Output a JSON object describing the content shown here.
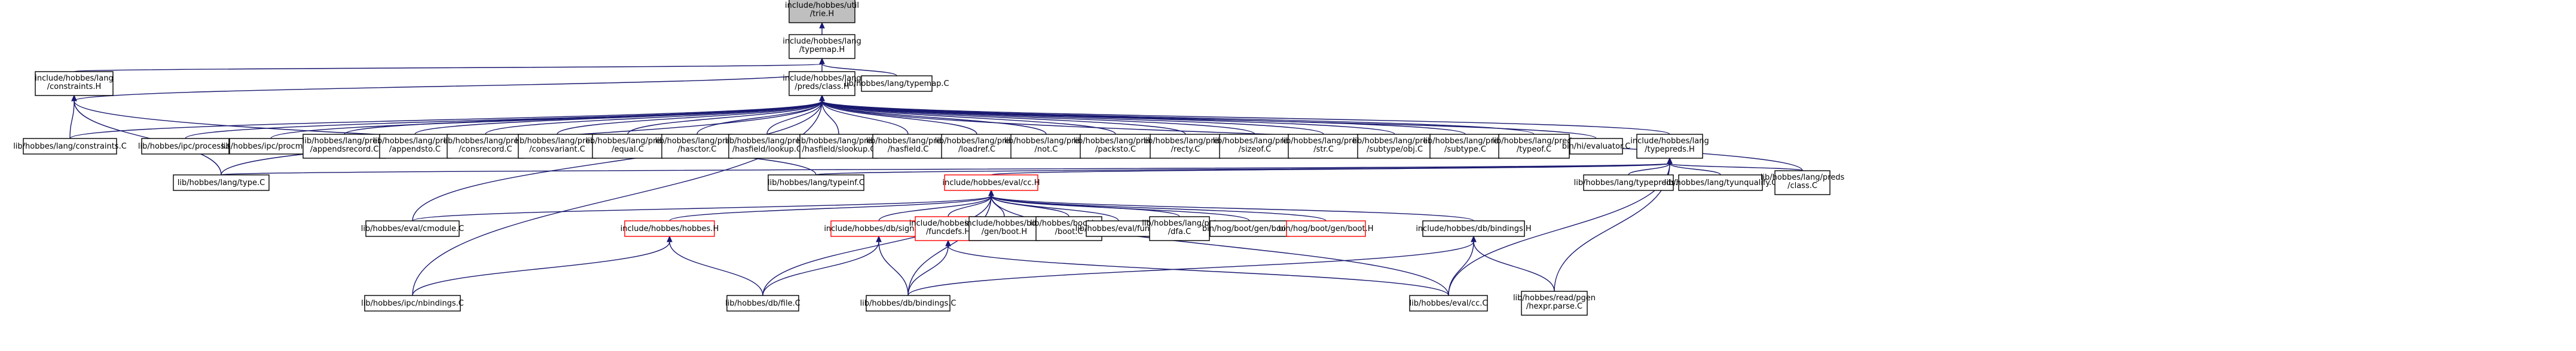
{
  "nodes": [
    {
      "id": "n0",
      "label": [
        "include/hobbes/util",
        "/trie.H"
      ],
      "kind": "root"
    },
    {
      "id": "n1",
      "label": [
        "include/hobbes/lang",
        "/typemap.H"
      ]
    },
    {
      "id": "n2",
      "label": [
        "include/hobbes/lang",
        "/constraints.H"
      ]
    },
    {
      "id": "n3",
      "label": [
        "include/hobbes/lang",
        "/preds/class.H"
      ]
    },
    {
      "id": "n4",
      "label": [
        "lib/hobbes/lang/typemap.C"
      ]
    },
    {
      "id": "n5",
      "label": [
        "lib/hobbes/lang/constraints.C"
      ]
    },
    {
      "id": "n6",
      "label": [
        "lib/hobbes/ipc/process.C"
      ]
    },
    {
      "id": "n7",
      "label": [
        "lib/hobbes/ipc/procman.C"
      ]
    },
    {
      "id": "n8",
      "label": [
        "lib/hobbes/lang/preds",
        "/appendsrecord.C"
      ]
    },
    {
      "id": "n9",
      "label": [
        "lib/hobbes/lang/preds",
        "/appendsto.C"
      ]
    },
    {
      "id": "n10",
      "label": [
        "lib/hobbes/lang/preds",
        "/consrecord.C"
      ]
    },
    {
      "id": "n11",
      "label": [
        "lib/hobbes/lang/preds",
        "/consvariant.C"
      ]
    },
    {
      "id": "n12",
      "label": [
        "lib/hobbes/lang/preds",
        "/equal.C"
      ]
    },
    {
      "id": "n13",
      "label": [
        "lib/hobbes/lang/preds",
        "/hasctor.C"
      ]
    },
    {
      "id": "n14",
      "label": [
        "lib/hobbes/lang/preds",
        "/hasfield/lookup.C"
      ]
    },
    {
      "id": "n15",
      "label": [
        "lib/hobbes/lang/preds",
        "/hasfield/slookup.C"
      ]
    },
    {
      "id": "n16",
      "label": [
        "lib/hobbes/lang/preds",
        "/hasfield.C"
      ]
    },
    {
      "id": "n17",
      "label": [
        "lib/hobbes/lang/preds",
        "/loadref.C"
      ]
    },
    {
      "id": "n18",
      "label": [
        "lib/hobbes/lang/preds",
        "/not.C"
      ]
    },
    {
      "id": "n19",
      "label": [
        "lib/hobbes/lang/preds",
        "/packsto.C"
      ]
    },
    {
      "id": "n20",
      "label": [
        "lib/hobbes/lang/preds",
        "/recty.C"
      ]
    },
    {
      "id": "n21",
      "label": [
        "lib/hobbes/lang/preds",
        "/sizeof.C"
      ]
    },
    {
      "id": "n22",
      "label": [
        "lib/hobbes/lang/preds",
        "/str.C"
      ]
    },
    {
      "id": "n23",
      "label": [
        "lib/hobbes/lang/preds",
        "/subtype/obj.C"
      ]
    },
    {
      "id": "n24",
      "label": [
        "lib/hobbes/lang/preds",
        "/subtype.C"
      ]
    },
    {
      "id": "n25",
      "label": [
        "lib/hobbes/lang/preds",
        "/typeof.C"
      ]
    },
    {
      "id": "n26",
      "label": [
        "bin/hi/evaluator.C"
      ]
    },
    {
      "id": "n27",
      "label": [
        "include/hobbes/lang",
        "/typepreds.H"
      ]
    },
    {
      "id": "n28",
      "label": [
        "lib/hobbes/lang/type.C"
      ]
    },
    {
      "id": "n29",
      "label": [
        "lib/hobbes/lang/typeinf.C"
      ]
    },
    {
      "id": "n30",
      "label": [
        "include/hobbes/eval/cc.H"
      ],
      "kind": "hl"
    },
    {
      "id": "n31",
      "label": [
        "lib/hobbes/lang/typepreds.C"
      ]
    },
    {
      "id": "n32",
      "label": [
        "lib/hobbes/lang/tyunqualify.C"
      ]
    },
    {
      "id": "n33",
      "label": [
        "lib/hobbes/lang/preds",
        "/class.C"
      ]
    },
    {
      "id": "n34",
      "label": [
        "lib/hobbes/eval/cmodule.C"
      ]
    },
    {
      "id": "n35",
      "label": [
        "include/hobbes/hobbes.H"
      ],
      "kind": "hl"
    },
    {
      "id": "n36",
      "label": [
        "include/hobbes/db/signals.H"
      ],
      "kind": "hl"
    },
    {
      "id": "n37",
      "label": [
        "include/hobbes/eval",
        "/funcdefs.H"
      ],
      "kind": "hl"
    },
    {
      "id": "n38",
      "label": [
        "include/hobbes/boot",
        "/gen/boot.H"
      ]
    },
    {
      "id": "n39",
      "label": [
        "lib/hobbes/boot/gen",
        "/boot.C"
      ]
    },
    {
      "id": "n40",
      "label": [
        "lib/hobbes/eval/func.C"
      ]
    },
    {
      "id": "n41",
      "label": [
        "lib/hobbes/lang/pat",
        "/dfa.C"
      ]
    },
    {
      "id": "n42",
      "label": [
        "bin/hog/boot/gen/boot.C"
      ]
    },
    {
      "id": "n43",
      "label": [
        "bin/hog/boot/gen/boot.H"
      ],
      "kind": "hl"
    },
    {
      "id": "n44",
      "label": [
        "include/hobbes/db/bindings.H"
      ]
    },
    {
      "id": "n45",
      "label": [
        "lib/hobbes/ipc/nbindings.C"
      ]
    },
    {
      "id": "n46",
      "label": [
        "lib/hobbes/db/file.C"
      ]
    },
    {
      "id": "n47",
      "label": [
        "lib/hobbes/db/bindings.C"
      ]
    },
    {
      "id": "n48",
      "label": [
        "lib/hobbes/eval/cc.C"
      ]
    },
    {
      "id": "n49",
      "label": [
        "lib/hobbes/read/pgen",
        "/hexpr.parse.C"
      ]
    }
  ],
  "edges": [
    [
      "n1",
      "n0"
    ],
    [
      "n2",
      "n1"
    ],
    [
      "n3",
      "n1"
    ],
    [
      "n4",
      "n1"
    ],
    [
      "n5",
      "n2"
    ],
    [
      "n28",
      "n2"
    ],
    [
      "n29",
      "n2"
    ],
    [
      "n3",
      "n2"
    ],
    [
      "n5",
      "n3"
    ],
    [
      "n6",
      "n3"
    ],
    [
      "n7",
      "n3"
    ],
    [
      "n8",
      "n3"
    ],
    [
      "n9",
      "n3"
    ],
    [
      "n10",
      "n3"
    ],
    [
      "n11",
      "n3"
    ],
    [
      "n12",
      "n3"
    ],
    [
      "n13",
      "n3"
    ],
    [
      "n14",
      "n3"
    ],
    [
      "n15",
      "n3"
    ],
    [
      "n16",
      "n3"
    ],
    [
      "n17",
      "n3"
    ],
    [
      "n18",
      "n3"
    ],
    [
      "n19",
      "n3"
    ],
    [
      "n20",
      "n3"
    ],
    [
      "n21",
      "n3"
    ],
    [
      "n22",
      "n3"
    ],
    [
      "n23",
      "n3"
    ],
    [
      "n24",
      "n3"
    ],
    [
      "n25",
      "n3"
    ],
    [
      "n26",
      "n3"
    ],
    [
      "n27",
      "n3"
    ],
    [
      "n33",
      "n3"
    ],
    [
      "n34",
      "n3"
    ],
    [
      "n45",
      "n3"
    ],
    [
      "n28",
      "n3"
    ],
    [
      "n28",
      "n27"
    ],
    [
      "n29",
      "n27"
    ],
    [
      "n30",
      "n27"
    ],
    [
      "n31",
      "n27"
    ],
    [
      "n32",
      "n27"
    ],
    [
      "n33",
      "n27"
    ],
    [
      "n48",
      "n27"
    ],
    [
      "n49",
      "n27"
    ],
    [
      "n34",
      "n30"
    ],
    [
      "n35",
      "n30"
    ],
    [
      "n36",
      "n30"
    ],
    [
      "n37",
      "n30"
    ],
    [
      "n38",
      "n30"
    ],
    [
      "n39",
      "n30"
    ],
    [
      "n40",
      "n30"
    ],
    [
      "n41",
      "n30"
    ],
    [
      "n42",
      "n30"
    ],
    [
      "n43",
      "n30"
    ],
    [
      "n44",
      "n30"
    ],
    [
      "n46",
      "n30"
    ],
    [
      "n47",
      "n30"
    ],
    [
      "n48",
      "n30"
    ],
    [
      "n45",
      "n35"
    ],
    [
      "n46",
      "n35"
    ],
    [
      "n46",
      "n36"
    ],
    [
      "n47",
      "n36"
    ],
    [
      "n47",
      "n37"
    ],
    [
      "n48",
      "n37"
    ],
    [
      "n47",
      "n44"
    ],
    [
      "n48",
      "n44"
    ],
    [
      "n49",
      "n44"
    ]
  ]
}
